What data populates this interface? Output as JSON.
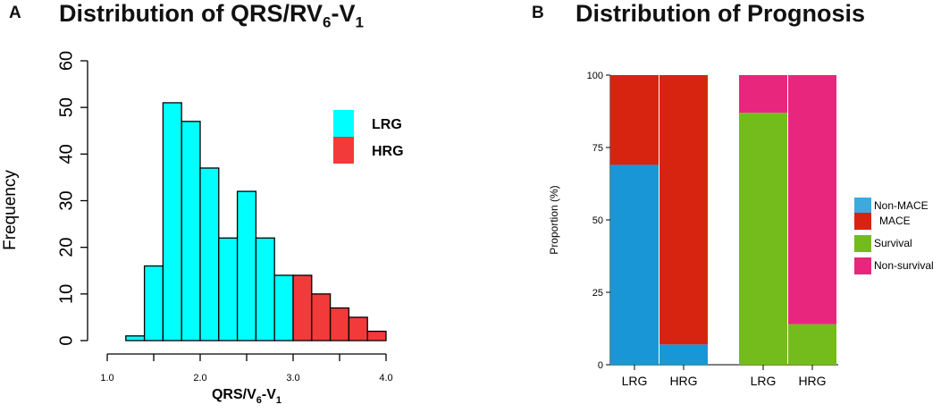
{
  "chart_data": [
    {
      "panel_letter": "A",
      "type": "bar",
      "subtype": "histogram",
      "title": "Distribution of QRS/RV6-V1",
      "title_parts": {
        "main": "Distribution of QRS/RV",
        "sub1": "6",
        "mid": "-V",
        "sub2": "1"
      },
      "xlabel": "QRS/V6-V1",
      "xlabel_parts": {
        "main": "QRS/V",
        "sub1": "6",
        "mid": "-V",
        "sub2": "1"
      },
      "ylabel": "Frequency",
      "xlim": [
        1.0,
        4.0
      ],
      "ylim": [
        0,
        60
      ],
      "bin_width": 0.2,
      "x_ticks": [
        {
          "value": 1.0,
          "label": "1.0"
        },
        {
          "value": 2.0,
          "label": "2.0"
        },
        {
          "value": 3.0,
          "label": "3.0"
        },
        {
          "value": 4.0,
          "label": "4.0"
        }
      ],
      "x_minor_ticks": [
        1.5,
        2.5,
        3.5
      ],
      "y_ticks": [
        {
          "value": 0,
          "label": "0"
        },
        {
          "value": 10,
          "label": "10"
        },
        {
          "value": 20,
          "label": "20"
        },
        {
          "value": 30,
          "label": "30"
        },
        {
          "value": 40,
          "label": "40"
        },
        {
          "value": 50,
          "label": "50"
        },
        {
          "value": 60,
          "label": "60"
        }
      ],
      "bins": [
        {
          "start": 1.2,
          "end": 1.4,
          "count": 1,
          "group": "LRG"
        },
        {
          "start": 1.4,
          "end": 1.6,
          "count": 16,
          "group": "LRG"
        },
        {
          "start": 1.6,
          "end": 1.8,
          "count": 51,
          "group": "LRG"
        },
        {
          "start": 1.8,
          "end": 2.0,
          "count": 47,
          "group": "LRG"
        },
        {
          "start": 2.0,
          "end": 2.2,
          "count": 37,
          "group": "LRG"
        },
        {
          "start": 2.2,
          "end": 2.4,
          "count": 22,
          "group": "LRG"
        },
        {
          "start": 2.4,
          "end": 2.6,
          "count": 32,
          "group": "LRG"
        },
        {
          "start": 2.6,
          "end": 2.8,
          "count": 22,
          "group": "LRG"
        },
        {
          "start": 2.8,
          "end": 3.0,
          "count": 14,
          "group": "LRG"
        },
        {
          "start": 3.0,
          "end": 3.2,
          "count": 14,
          "group": "HRG"
        },
        {
          "start": 3.2,
          "end": 3.4,
          "count": 10,
          "group": "HRG"
        },
        {
          "start": 3.4,
          "end": 3.6,
          "count": 7,
          "group": "HRG"
        },
        {
          "start": 3.6,
          "end": 3.8,
          "count": 5,
          "group": "HRG"
        },
        {
          "start": 3.8,
          "end": 4.0,
          "count": 2,
          "group": "HRG"
        }
      ],
      "legend": [
        {
          "label": "LRG",
          "color": "#00ffff"
        },
        {
          "label": "HRG",
          "color": "#f23a3a"
        }
      ],
      "legend_position": "top-right"
    },
    {
      "panel_letter": "B",
      "type": "bar",
      "subtype": "stacked-percent",
      "title": "Distribution of Prognosis",
      "xlabel": "",
      "ylabel": "Proportion (%)",
      "ylim": [
        0,
        100
      ],
      "y_ticks": [
        {
          "value": 0,
          "label": "0"
        },
        {
          "value": 25,
          "label": "25"
        },
        {
          "value": 50,
          "label": "50"
        },
        {
          "value": 75,
          "label": "75"
        },
        {
          "value": 100,
          "label": "100"
        }
      ],
      "categories": [
        "LRG",
        "HRG",
        "LRG",
        "HRG"
      ],
      "groups": [
        {
          "bars": [
            {
              "label": "LRG",
              "segments": [
                {
                  "name": "Non-MACE",
                  "value": 69,
                  "color": "#1896d6"
                },
                {
                  "name": "MACE",
                  "value": 31,
                  "color": "#d72410"
                }
              ]
            },
            {
              "label": "HRG",
              "segments": [
                {
                  "name": "Non-MACE",
                  "value": 7,
                  "color": "#1896d6"
                },
                {
                  "name": "MACE",
                  "value": 93,
                  "color": "#d72410"
                }
              ]
            }
          ]
        },
        {
          "bars": [
            {
              "label": "LRG",
              "segments": [
                {
                  "name": "Survival",
                  "value": 87,
                  "color": "#74bc1c"
                },
                {
                  "name": "Non-survival",
                  "value": 13,
                  "color": "#e8267e"
                }
              ]
            },
            {
              "label": "HRG",
              "segments": [
                {
                  "name": "Survival",
                  "value": 14,
                  "color": "#74bc1c"
                },
                {
                  "name": "Non-survival",
                  "value": 86,
                  "color": "#e8267e"
                }
              ]
            }
          ]
        }
      ],
      "legend": [
        {
          "label": "Non-MACE",
          "color": "#3ea9dc"
        },
        {
          "label": "MACE",
          "color": "#d72410"
        },
        {
          "label": "Survival",
          "color": "#74bc1c"
        },
        {
          "label": "Non-survival",
          "color": "#e8267e"
        }
      ],
      "legend_position": "right"
    }
  ]
}
